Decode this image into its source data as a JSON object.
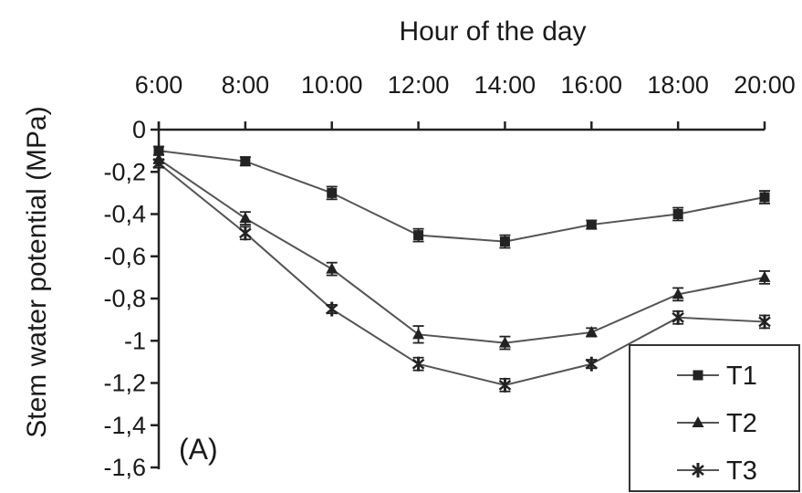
{
  "chart_data": {
    "type": "line",
    "xlabel": "Hour of the day",
    "ylabel": "Stem water potential (MPa)",
    "x_axis_position": "top",
    "x": [
      "6:00",
      "8:00",
      "10:00",
      "12:00",
      "14:00",
      "16:00",
      "18:00",
      "20:00"
    ],
    "x_tick_labels": [
      "6:00",
      "8:00",
      "10:00",
      "12:00",
      "14:00",
      "16:00",
      "18:00",
      "20:00"
    ],
    "ylim": [
      -1.6,
      0
    ],
    "y_ticks": [
      0,
      -0.2,
      -0.4,
      -0.6,
      -0.8,
      -1,
      -1.2,
      -1.4,
      -1.6
    ],
    "y_tick_labels": [
      "0",
      "-0,2",
      "-0,4",
      "-0,6",
      "-0,8",
      "-1",
      "-1,2",
      "-1,4",
      "-1,6"
    ],
    "grid": false,
    "annotation": "(A)",
    "legend_position": "bottom-right",
    "series": [
      {
        "name": "T1",
        "marker": "square",
        "values": [
          -0.1,
          -0.15,
          -0.3,
          -0.5,
          -0.53,
          -0.45,
          -0.4,
          -0.32
        ],
        "errors": [
          0.02,
          0.02,
          0.03,
          0.03,
          0.03,
          0.02,
          0.03,
          0.03
        ]
      },
      {
        "name": "T2",
        "marker": "triangle",
        "values": [
          -0.14,
          -0.42,
          -0.66,
          -0.97,
          -1.01,
          -0.96,
          -0.78,
          -0.7
        ],
        "errors": [
          0.02,
          0.03,
          0.03,
          0.04,
          0.03,
          0.02,
          0.03,
          0.03
        ]
      },
      {
        "name": "T3",
        "marker": "star",
        "values": [
          -0.16,
          -0.49,
          -0.85,
          -1.11,
          -1.21,
          -1.11,
          -0.89,
          -0.91
        ],
        "errors": [
          0.02,
          0.03,
          0.02,
          0.03,
          0.03,
          0.02,
          0.03,
          0.03
        ]
      }
    ]
  }
}
